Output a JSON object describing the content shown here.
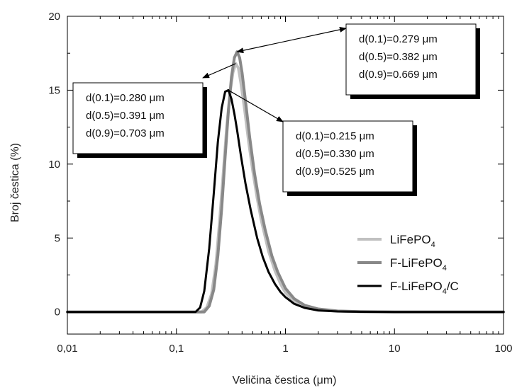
{
  "chart_data": {
    "type": "line",
    "title": "",
    "xlabel": "Veličina čestica  (μm)",
    "ylabel": "Broj čestica  (%)",
    "xscale": "log",
    "xlim": [
      0.01,
      100
    ],
    "ylim": [
      -1.5,
      20
    ],
    "xticks": [
      0.01,
      0.1,
      1,
      10,
      100
    ],
    "xtick_labels": [
      "0,01",
      "0,1",
      "1",
      "10",
      "100"
    ],
    "yticks": [
      0,
      5,
      10,
      15,
      20
    ],
    "ytick_labels": [
      "0",
      "5",
      "10",
      "15",
      "20"
    ],
    "grid": false,
    "legend_position": "bottom-right",
    "series": [
      {
        "name": "LiFePO4",
        "name_main": "LiFePO",
        "name_sub": "4",
        "name_suffix": "",
        "color": "#c0c0c0",
        "x": [
          0.01,
          0.1,
          0.17,
          0.19,
          0.21,
          0.23,
          0.25,
          0.27,
          0.29,
          0.31,
          0.33,
          0.35,
          0.37,
          0.39,
          0.42,
          0.46,
          0.5,
          0.55,
          0.6,
          0.7,
          0.8,
          0.9,
          1.0,
          1.2,
          1.5,
          2.0,
          3.0,
          5.0,
          10,
          20,
          100
        ],
        "y": [
          0,
          0,
          0,
          0.3,
          1.2,
          3.2,
          6.3,
          9.6,
          12.6,
          14.8,
          16.2,
          16.8,
          16.5,
          15.5,
          13.8,
          11.5,
          9.6,
          7.7,
          6.2,
          4.1,
          2.8,
          1.9,
          1.3,
          0.7,
          0.35,
          0.15,
          0.05,
          0.01,
          0,
          0,
          0
        ]
      },
      {
        "name": "F-LiFePO4",
        "name_main": "F-LiFePO",
        "name_sub": "4",
        "name_suffix": "",
        "color": "#888888",
        "x": [
          0.01,
          0.1,
          0.18,
          0.2,
          0.22,
          0.24,
          0.26,
          0.28,
          0.3,
          0.32,
          0.34,
          0.36,
          0.38,
          0.4,
          0.43,
          0.47,
          0.52,
          0.58,
          0.65,
          0.75,
          0.85,
          1.0,
          1.2,
          1.5,
          2.0,
          3.0,
          5.0,
          10,
          20,
          100
        ],
        "y": [
          0,
          0,
          0,
          0.4,
          1.5,
          3.8,
          7.0,
          10.5,
          13.6,
          15.9,
          17.2,
          17.6,
          17.2,
          16.2,
          14.3,
          11.8,
          9.4,
          7.3,
          5.6,
          3.8,
          2.7,
          1.6,
          0.9,
          0.45,
          0.2,
          0.06,
          0.02,
          0,
          0,
          0
        ]
      },
      {
        "name": "F-LiFePO4/C",
        "name_main": "F-LiFePO",
        "name_sub": "4",
        "name_suffix": "/C",
        "color": "#000000",
        "x": [
          0.01,
          0.1,
          0.15,
          0.165,
          0.18,
          0.2,
          0.22,
          0.24,
          0.26,
          0.28,
          0.3,
          0.32,
          0.34,
          0.36,
          0.39,
          0.43,
          0.48,
          0.55,
          0.62,
          0.7,
          0.8,
          0.9,
          1.0,
          1.2,
          1.5,
          2.0,
          3.0,
          5.0,
          10,
          20,
          100
        ],
        "y": [
          0,
          0,
          0,
          0.3,
          1.4,
          4.3,
          8.0,
          11.5,
          13.8,
          14.9,
          15.0,
          14.4,
          13.4,
          12.3,
          10.6,
          8.7,
          6.9,
          5.0,
          3.7,
          2.7,
          1.9,
          1.35,
          1.0,
          0.55,
          0.27,
          0.1,
          0.03,
          0.01,
          0,
          0,
          0
        ]
      }
    ],
    "annotations": [
      {
        "id": "box-f-lifepo4",
        "lines": [
          "d(0.1)=0.279 μm",
          "d(0.5)=0.382 μm",
          "d(0.9)=0.669 μm"
        ],
        "points_to": {
          "x": 0.36,
          "y": 17.6
        }
      },
      {
        "id": "box-lifepo4",
        "lines": [
          "d(0.1)=0.280 μm",
          "d(0.5)=0.391 μm",
          "d(0.9)=0.703 μm"
        ],
        "points_to": {
          "x": 0.35,
          "y": 16.8
        }
      },
      {
        "id": "box-f-lifepo4-c",
        "lines": [
          "d(0.1)=0.215 μm",
          "d(0.5)=0.330 μm",
          "d(0.9)=0.525 μm"
        ],
        "points_to": {
          "x": 0.3,
          "y": 15.0
        }
      }
    ]
  }
}
